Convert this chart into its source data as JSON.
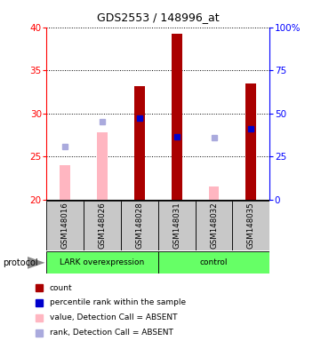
{
  "title": "GDS2553 / 148996_at",
  "samples": [
    "GSM148016",
    "GSM148026",
    "GSM148028",
    "GSM148031",
    "GSM148032",
    "GSM148035"
  ],
  "bar_values": [
    24.0,
    27.8,
    33.2,
    39.2,
    21.5,
    33.5
  ],
  "bar_absent": [
    true,
    true,
    false,
    false,
    true,
    false
  ],
  "rank_values": [
    26.2,
    29.0,
    29.5,
    27.3,
    27.2,
    28.2
  ],
  "rank_absent": [
    true,
    true,
    false,
    false,
    true,
    false
  ],
  "ymin": 20,
  "ymax": 40,
  "yticks_left": [
    20,
    25,
    30,
    35,
    40
  ],
  "right_ytick_pcts": [
    0,
    25,
    50,
    75,
    100
  ],
  "right_yticklabels": [
    "0",
    "25",
    "50",
    "75",
    "100%"
  ],
  "lark_label": "LARK overexpression",
  "control_label": "control",
  "protocol_label": "protocol",
  "bar_width": 0.28,
  "present_color": "#AA0000",
  "absent_color": "#FFB6C1",
  "rank_present_color": "#0000CC",
  "rank_absent_color": "#AAAADD",
  "bg_color": "#C8C8C8",
  "green_color": "#66FF66",
  "bar_bottom": 20,
  "legend_items": [
    {
      "color": "#AA0000",
      "label": "count"
    },
    {
      "color": "#0000CC",
      "label": "percentile rank within the sample"
    },
    {
      "color": "#FFB6C1",
      "label": "value, Detection Call = ABSENT"
    },
    {
      "color": "#AAAADD",
      "label": "rank, Detection Call = ABSENT"
    }
  ]
}
